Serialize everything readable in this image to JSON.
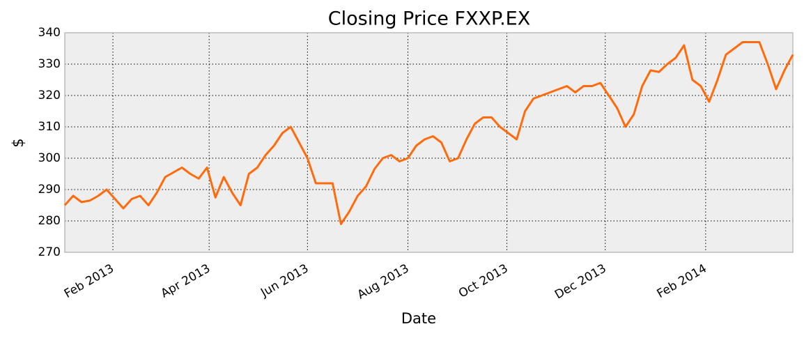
{
  "chart_data": {
    "type": "line",
    "title": "Closing Price FXXP.EX",
    "xlabel": "Date",
    "ylabel": "$",
    "series": [
      {
        "name": "FXXP.EX",
        "color": "#ff6a0a",
        "values": [
          285,
          288,
          286,
          286.5,
          288,
          290,
          287,
          284,
          287,
          288,
          285,
          289,
          294,
          295.5,
          297,
          295,
          293.5,
          297,
          287.5,
          294,
          289,
          285,
          295,
          297,
          301,
          304,
          308,
          310,
          305,
          300,
          292,
          292,
          292,
          279,
          283,
          288,
          291,
          296.5,
          300,
          301,
          299,
          300,
          304,
          306,
          307,
          305,
          299,
          300,
          306,
          311,
          313,
          313,
          310,
          308,
          306,
          315,
          319,
          320,
          321,
          322,
          323,
          321,
          323,
          323,
          324,
          320,
          316,
          310,
          314,
          323,
          328,
          327.5,
          330,
          332,
          336,
          325,
          323,
          318,
          325,
          333,
          335,
          337,
          337,
          337,
          330,
          322,
          328,
          333
        ]
      }
    ],
    "xlim": [
      0,
      87
    ],
    "xticks": [
      {
        "value": 5.75,
        "label": "Feb 2013"
      },
      {
        "value": 17.25,
        "label": "Apr 2013"
      },
      {
        "value": 29,
        "label": "Jun 2013"
      },
      {
        "value": 41,
        "label": "Aug 2013"
      },
      {
        "value": 52.83,
        "label": "Oct 2013"
      },
      {
        "value": 64.58,
        "label": "Dec 2013"
      },
      {
        "value": 76.58,
        "label": "Feb 2014"
      }
    ],
    "ylim": [
      270,
      340
    ],
    "yticks": [
      270,
      280,
      290,
      300,
      310,
      320,
      330,
      340
    ],
    "grid": true
  }
}
